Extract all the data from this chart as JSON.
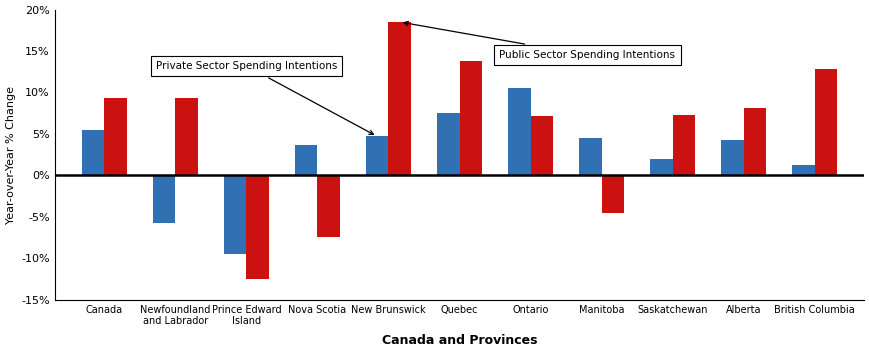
{
  "categories": [
    "Canada",
    "Newfoundland\nand Labrador",
    "Prince Edward\nIsland",
    "Nova Scotia",
    "New Brunswick",
    "Quebec",
    "Ontario",
    "Manitoba",
    "Saskatchewan",
    "Alberta",
    "British Columbia"
  ],
  "private": [
    5.5,
    -5.8,
    -9.5,
    3.7,
    4.7,
    7.5,
    10.5,
    4.5,
    2.0,
    4.3,
    1.2
  ],
  "public": [
    9.3,
    9.3,
    -12.5,
    -7.5,
    18.5,
    13.8,
    7.2,
    -4.6,
    7.3,
    8.1,
    12.8
  ],
  "private_color": "#3070b3",
  "public_color": "#cc1111",
  "ylabel": "Year-over-Year % Change",
  "xlabel": "Canada and Provinces",
  "ylim": [
    -15,
    20
  ],
  "yticks": [
    -15,
    -10,
    -5,
    0,
    5,
    10,
    15,
    20
  ],
  "ytick_labels": [
    "-15%",
    "-10%",
    "-5%",
    "0%",
    "5%",
    "10%",
    "15%",
    "20%"
  ],
  "private_label": "Private Sector Spending Intentions",
  "public_label": "Public Sector Spending Intentions",
  "bg_color": "#ffffff"
}
